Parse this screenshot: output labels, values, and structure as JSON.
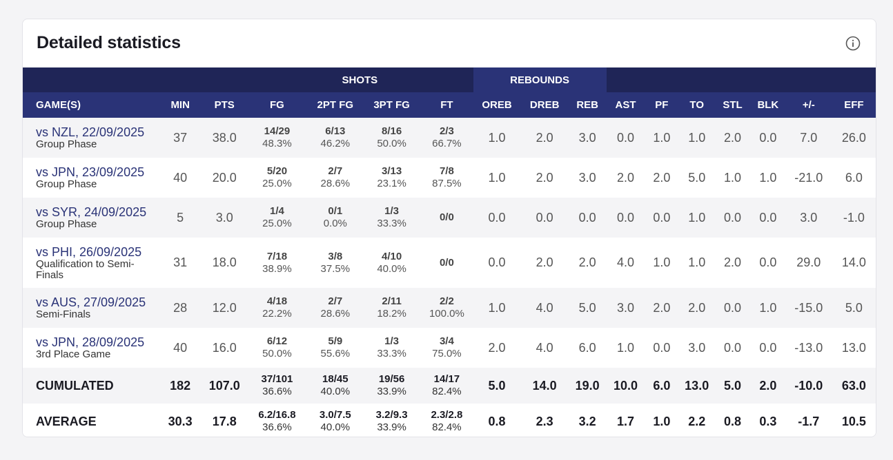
{
  "title": "Detailed statistics",
  "groups": {
    "shots": "SHOTS",
    "rebounds": "REBOUNDS"
  },
  "columns": [
    "GAME(S)",
    "MIN",
    "PTS",
    "FG",
    "2PT FG",
    "3PT FG",
    "FT",
    "OREB",
    "DREB",
    "REB",
    "AST",
    "PF",
    "TO",
    "STL",
    "BLK",
    "+/-",
    "EFF"
  ],
  "games": [
    {
      "opponent": "vs NZL, 22/09/2025",
      "phase": "Group Phase",
      "min": "37",
      "pts": "38.0",
      "fg": {
        "made": "14/29",
        "pct": "48.3%"
      },
      "fg2": {
        "made": "6/13",
        "pct": "46.2%"
      },
      "fg3": {
        "made": "8/16",
        "pct": "50.0%"
      },
      "ft": {
        "made": "2/3",
        "pct": "66.7%"
      },
      "oreb": "1.0",
      "dreb": "2.0",
      "reb": "3.0",
      "ast": "0.0",
      "pf": "1.0",
      "to": "1.0",
      "stl": "2.0",
      "blk": "0.0",
      "pm": "7.0",
      "eff": "26.0"
    },
    {
      "opponent": "vs JPN, 23/09/2025",
      "phase": "Group Phase",
      "min": "40",
      "pts": "20.0",
      "fg": {
        "made": "5/20",
        "pct": "25.0%"
      },
      "fg2": {
        "made": "2/7",
        "pct": "28.6%"
      },
      "fg3": {
        "made": "3/13",
        "pct": "23.1%"
      },
      "ft": {
        "made": "7/8",
        "pct": "87.5%"
      },
      "oreb": "1.0",
      "dreb": "2.0",
      "reb": "3.0",
      "ast": "2.0",
      "pf": "2.0",
      "to": "5.0",
      "stl": "1.0",
      "blk": "1.0",
      "pm": "-21.0",
      "eff": "6.0"
    },
    {
      "opponent": "vs SYR, 24/09/2025",
      "phase": "Group Phase",
      "min": "5",
      "pts": "3.0",
      "fg": {
        "made": "1/4",
        "pct": "25.0%"
      },
      "fg2": {
        "made": "0/1",
        "pct": "0.0%"
      },
      "fg3": {
        "made": "1/3",
        "pct": "33.3%"
      },
      "ft": {
        "made": "0/0",
        "pct": ""
      },
      "oreb": "0.0",
      "dreb": "0.0",
      "reb": "0.0",
      "ast": "0.0",
      "pf": "0.0",
      "to": "1.0",
      "stl": "0.0",
      "blk": "0.0",
      "pm": "3.0",
      "eff": "-1.0"
    },
    {
      "opponent": "vs PHI, 26/09/2025",
      "phase": "Qualification to Semi-Finals",
      "min": "31",
      "pts": "18.0",
      "fg": {
        "made": "7/18",
        "pct": "38.9%"
      },
      "fg2": {
        "made": "3/8",
        "pct": "37.5%"
      },
      "fg3": {
        "made": "4/10",
        "pct": "40.0%"
      },
      "ft": {
        "made": "0/0",
        "pct": ""
      },
      "oreb": "0.0",
      "dreb": "2.0",
      "reb": "2.0",
      "ast": "4.0",
      "pf": "1.0",
      "to": "1.0",
      "stl": "2.0",
      "blk": "0.0",
      "pm": "29.0",
      "eff": "14.0"
    },
    {
      "opponent": "vs AUS, 27/09/2025",
      "phase": "Semi-Finals",
      "min": "28",
      "pts": "12.0",
      "fg": {
        "made": "4/18",
        "pct": "22.2%"
      },
      "fg2": {
        "made": "2/7",
        "pct": "28.6%"
      },
      "fg3": {
        "made": "2/11",
        "pct": "18.2%"
      },
      "ft": {
        "made": "2/2",
        "pct": "100.0%"
      },
      "oreb": "1.0",
      "dreb": "4.0",
      "reb": "5.0",
      "ast": "3.0",
      "pf": "2.0",
      "to": "2.0",
      "stl": "0.0",
      "blk": "1.0",
      "pm": "-15.0",
      "eff": "5.0"
    },
    {
      "opponent": "vs JPN, 28/09/2025",
      "phase": "3rd Place Game",
      "min": "40",
      "pts": "16.0",
      "fg": {
        "made": "6/12",
        "pct": "50.0%"
      },
      "fg2": {
        "made": "5/9",
        "pct": "55.6%"
      },
      "fg3": {
        "made": "1/3",
        "pct": "33.3%"
      },
      "ft": {
        "made": "3/4",
        "pct": "75.0%"
      },
      "oreb": "2.0",
      "dreb": "4.0",
      "reb": "6.0",
      "ast": "1.0",
      "pf": "0.0",
      "to": "3.0",
      "stl": "0.0",
      "blk": "0.0",
      "pm": "-13.0",
      "eff": "13.0"
    }
  ],
  "summary": [
    {
      "label": "CUMULATED",
      "min": "182",
      "pts": "107.0",
      "fg": {
        "made": "37/101",
        "pct": "36.6%"
      },
      "fg2": {
        "made": "18/45",
        "pct": "40.0%"
      },
      "fg3": {
        "made": "19/56",
        "pct": "33.9%"
      },
      "ft": {
        "made": "14/17",
        "pct": "82.4%"
      },
      "oreb": "5.0",
      "dreb": "14.0",
      "reb": "19.0",
      "ast": "10.0",
      "pf": "6.0",
      "to": "13.0",
      "stl": "5.0",
      "blk": "2.0",
      "pm": "-10.0",
      "eff": "63.0"
    },
    {
      "label": "AVERAGE",
      "min": "30.3",
      "pts": "17.8",
      "fg": {
        "made": "6.2/16.8",
        "pct": "36.6%"
      },
      "fg2": {
        "made": "3.0/7.5",
        "pct": "40.0%"
      },
      "fg3": {
        "made": "3.2/9.3",
        "pct": "33.9%"
      },
      "ft": {
        "made": "2.3/2.8",
        "pct": "82.4%"
      },
      "oreb": "0.8",
      "dreb": "2.3",
      "reb": "3.2",
      "ast": "1.7",
      "pf": "1.0",
      "to": "2.2",
      "stl": "0.8",
      "blk": "0.3",
      "pm": "-1.7",
      "eff": "10.5"
    }
  ]
}
